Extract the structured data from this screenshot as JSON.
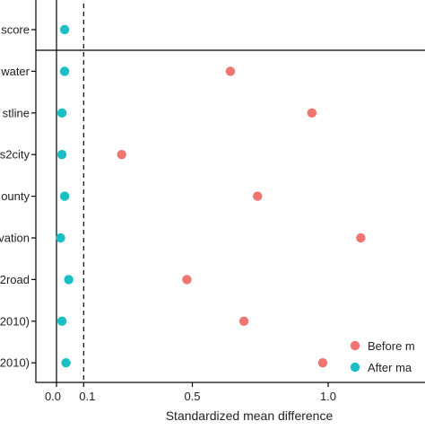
{
  "chart_data": {
    "type": "scatter",
    "title": "",
    "xlabel": "Standardized mean difference",
    "ylabel": "",
    "xlim": [
      -0.06,
      1.36
    ],
    "xticks": [
      {
        "value": 0.0,
        "label": "0.0"
      },
      {
        "value": 0.1,
        "label": "0.1"
      },
      {
        "value": 0.5,
        "label": "0.5"
      },
      {
        "value": 1.0,
        "label": "1.0"
      }
    ],
    "reference_lines": [
      {
        "value": 0.0,
        "style": "solid"
      },
      {
        "value": 0.1,
        "style": "dashed"
      }
    ],
    "categories": [
      "score",
      "water",
      "stline",
      "s2city",
      "ounty",
      "vation",
      "2road",
      "2010)",
      "2010)"
    ],
    "series": [
      {
        "name": "Before m",
        "color": "#F07470",
        "values": [
          null,
          0.64,
          0.94,
          0.24,
          0.74,
          1.12,
          0.48,
          0.69,
          0.98
        ]
      },
      {
        "name": "After ma",
        "color": "#1BBFC3",
        "values": [
          0.03,
          0.03,
          0.02,
          0.02,
          0.03,
          0.015,
          0.045,
          0.02,
          0.035
        ]
      }
    ],
    "legend_position": "right",
    "grid": false
  },
  "colors": {
    "before": "#F07470",
    "after": "#1BBFC3",
    "axis": "#000000"
  }
}
